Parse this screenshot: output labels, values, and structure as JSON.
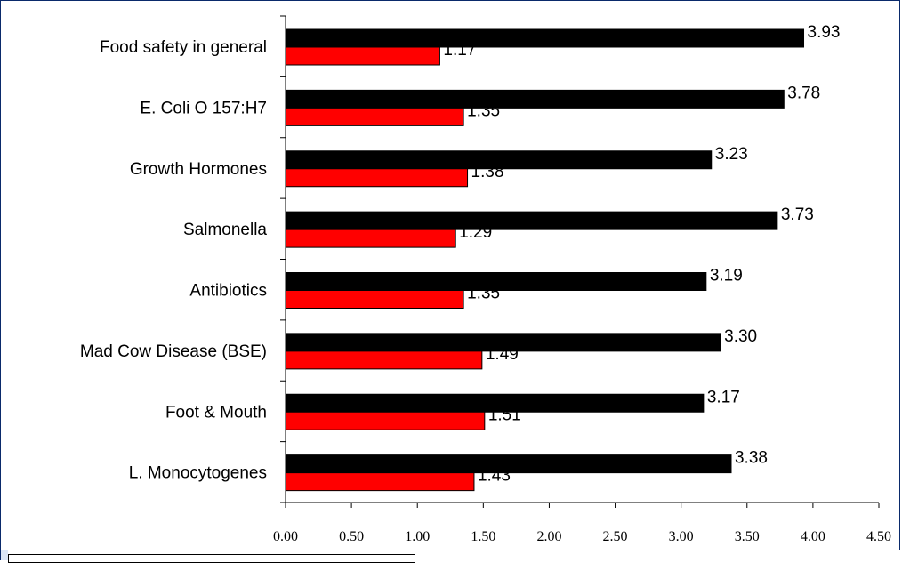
{
  "chart_data": {
    "type": "bar",
    "orientation": "horizontal",
    "categories": [
      "Food safety in general",
      "E. Coli O 157:H7",
      "Growth Hormones",
      "Salmonella",
      "Antibiotics",
      "Mad Cow Disease (BSE)",
      "Foot & Mouth",
      "L. Monocytogenes"
    ],
    "series": [
      {
        "color": "#000000",
        "values": [
          3.93,
          3.78,
          3.23,
          3.73,
          3.19,
          3.3,
          3.17,
          3.38
        ],
        "value_labels": [
          "3.93",
          "3.78",
          "3.23",
          "3.73",
          "3.19",
          "3.30",
          "3.17",
          "3.38"
        ]
      },
      {
        "color": "#ff0000",
        "values": [
          1.17,
          1.35,
          1.38,
          1.29,
          1.35,
          1.49,
          1.51,
          1.43
        ],
        "value_labels": [
          "1.17",
          "1.35",
          "1.38",
          "1.29",
          "1.35",
          "1.49",
          "1.51",
          "1.43"
        ]
      }
    ],
    "xlim": [
      0,
      4.5
    ],
    "xticks": [
      0,
      0.5,
      1,
      1.5,
      2,
      2.5,
      3,
      3.5,
      4,
      4.5
    ],
    "xtick_labels": [
      "0.00",
      "0.50",
      "1.00",
      "1.50",
      "2.00",
      "2.50",
      "3.00",
      "3.50",
      "4.00",
      "4.50"
    ],
    "grid": false,
    "title": "",
    "xlabel": "",
    "ylabel": ""
  }
}
